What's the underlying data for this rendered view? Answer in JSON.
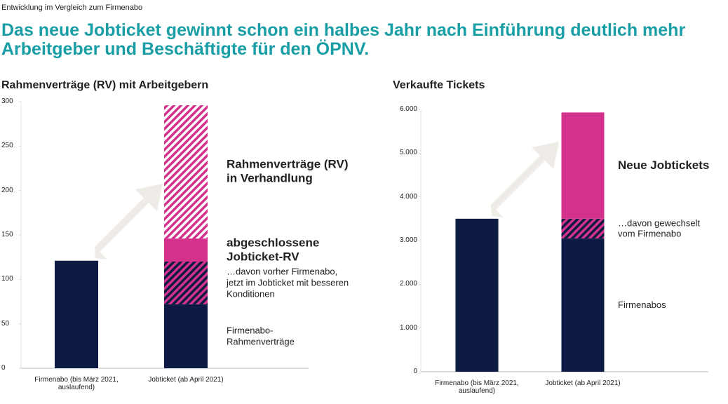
{
  "header": {
    "kicker": "Entwicklung im Vergleich zum Firmenabo",
    "title": "Das neue Jobticket gewinnt schon ein halbes Jahr nach Einführung deutlich mehr Arbeitgeber und Beschäftigte für den ÖPNV."
  },
  "chart_data": [
    {
      "type": "bar",
      "stacked": true,
      "title": "Rahmenverträge (RV) mit Arbeitgebern",
      "categories": [
        "Firmenabo (bis März 2021, auslaufend)",
        "Jobticket (ab April 2021)"
      ],
      "series": [
        {
          "name": "Firmenabo-Rahmenverträge",
          "color": "#0d1b44",
          "values": [
            121,
            72
          ]
        },
        {
          "name": "…davon vorher Firmenabo, jetzt im Jobticket mit besseren Konditionen",
          "color": "#0d1b44",
          "hatch": "#d4318c",
          "values": [
            null,
            48
          ]
        },
        {
          "name": "abgeschlossene Jobticket-RV",
          "color": "#d4318c",
          "values": [
            null,
            26
          ]
        },
        {
          "name": "Rahmenverträge (RV) in Verhandlung",
          "color": "#ffffff",
          "hatch": "#d4318c",
          "values": [
            null,
            150
          ]
        }
      ],
      "ylim": [
        0,
        300
      ],
      "yticks": [
        0,
        50,
        100,
        150,
        200,
        250,
        300
      ],
      "grid": false
    },
    {
      "type": "bar",
      "stacked": true,
      "title": "Verkaufte Tickets",
      "categories": [
        "Firmenabo (bis März 2021, auslaufend)",
        "Jobticket (ab April 2021)"
      ],
      "series": [
        {
          "name": "Firmenabos",
          "color": "#0d1b44",
          "values": [
            3500,
            3050
          ]
        },
        {
          "name": "…davon gewechselt vom Firmenabo",
          "color": "#0d1b44",
          "hatch": "#d4318c",
          "values": [
            null,
            450
          ]
        },
        {
          "name": "Neue Jobtickets",
          "color": "#d4318c",
          "values": [
            null,
            2430
          ]
        }
      ],
      "ylim": [
        0,
        6000
      ],
      "yticks": [
        0,
        {
          "value": 1000,
          "label": "1.000"
        },
        {
          "value": 2000,
          "label": "2.000"
        },
        {
          "value": 3000,
          "label": "3.000"
        },
        {
          "value": 4000,
          "label": "4.000"
        },
        {
          "value": 5000,
          "label": "5.000"
        },
        {
          "value": 6000,
          "label": "6.000"
        }
      ],
      "grid": false
    }
  ]
}
